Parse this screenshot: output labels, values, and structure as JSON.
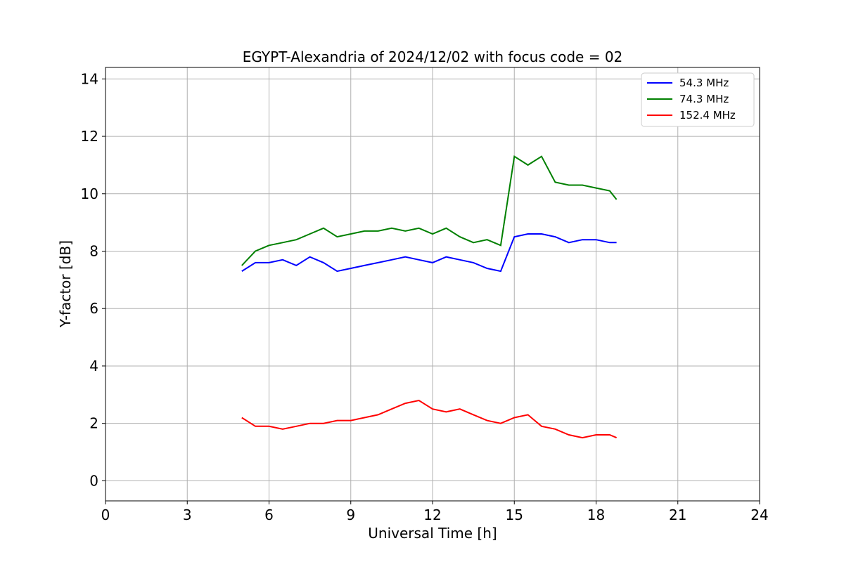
{
  "chart_data": {
    "type": "line",
    "title": "EGYPT-Alexandria of 2024/12/02 with focus code = 02",
    "xlabel": "Universal Time [h]",
    "ylabel": "Y-factor [dB]",
    "xlim": [
      0,
      24
    ],
    "ylim": [
      -0.7,
      14.4
    ],
    "xticks": [
      "0",
      "3",
      "6",
      "9",
      "12",
      "15",
      "18",
      "21",
      "24"
    ],
    "yticks": [
      "0",
      "2",
      "4",
      "6",
      "8",
      "10",
      "12",
      "14"
    ],
    "grid": true,
    "legend_position": "top-right",
    "series": [
      {
        "name": "  54.3 MHz",
        "color": "#0000ff",
        "x": [
          5.0,
          5.5,
          6.0,
          6.5,
          7.0,
          7.5,
          8.0,
          8.5,
          9.0,
          9.5,
          10.0,
          10.5,
          11.0,
          11.5,
          12.0,
          12.5,
          13.0,
          13.5,
          14.0,
          14.5,
          15.0,
          15.5,
          16.0,
          16.5,
          17.0,
          17.5,
          18.0,
          18.5,
          18.75
        ],
        "values": [
          7.3,
          7.6,
          7.6,
          7.7,
          7.5,
          7.8,
          7.6,
          7.3,
          7.4,
          7.5,
          7.6,
          7.7,
          7.8,
          7.7,
          7.6,
          7.8,
          7.7,
          7.6,
          7.4,
          7.3,
          8.5,
          8.6,
          8.6,
          8.5,
          8.3,
          8.4,
          8.4,
          8.3,
          8.3
        ]
      },
      {
        "name": "  74.3 MHz",
        "color": "#008000",
        "x": [
          5.0,
          5.5,
          6.0,
          6.5,
          7.0,
          7.5,
          8.0,
          8.5,
          9.0,
          9.5,
          10.0,
          10.5,
          11.0,
          11.5,
          12.0,
          12.5,
          13.0,
          13.5,
          14.0,
          14.5,
          15.0,
          15.5,
          16.0,
          16.5,
          17.0,
          17.5,
          18.0,
          18.5,
          18.75
        ],
        "values": [
          7.5,
          8.0,
          8.2,
          8.3,
          8.4,
          8.6,
          8.8,
          8.5,
          8.6,
          8.7,
          8.7,
          8.8,
          8.7,
          8.8,
          8.6,
          8.8,
          8.5,
          8.3,
          8.4,
          8.2,
          11.3,
          11.0,
          11.3,
          10.4,
          10.3,
          10.3,
          10.2,
          10.1,
          9.8
        ]
      },
      {
        "name": " 152.4 MHz",
        "color": "#ff0000",
        "x": [
          5.0,
          5.5,
          6.0,
          6.5,
          7.0,
          7.5,
          8.0,
          8.5,
          9.0,
          9.5,
          10.0,
          10.5,
          11.0,
          11.5,
          12.0,
          12.5,
          13.0,
          13.5,
          14.0,
          14.5,
          15.0,
          15.5,
          16.0,
          16.5,
          17.0,
          17.5,
          18.0,
          18.5,
          18.75
        ],
        "values": [
          2.2,
          1.9,
          1.9,
          1.8,
          1.9,
          2.0,
          2.0,
          2.1,
          2.1,
          2.2,
          2.3,
          2.5,
          2.7,
          2.8,
          2.5,
          2.4,
          2.5,
          2.3,
          2.1,
          2.0,
          2.2,
          2.3,
          1.9,
          1.8,
          1.6,
          1.5,
          1.6,
          1.6,
          1.5
        ]
      }
    ]
  }
}
